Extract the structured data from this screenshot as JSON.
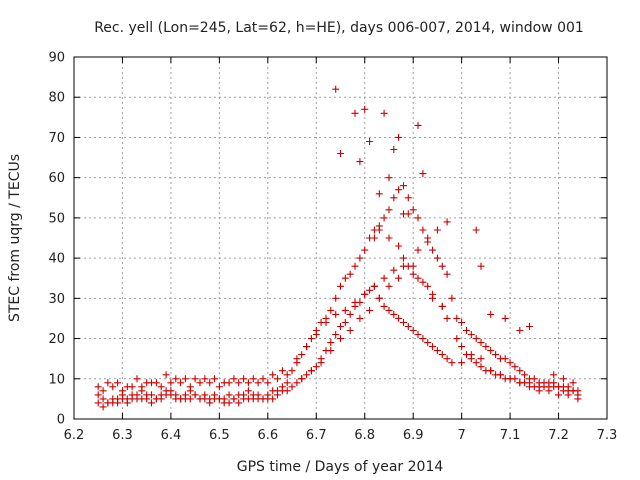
{
  "chart_data": {
    "type": "scatter",
    "title": "Rec. yell (Lon=245, Lat=62, h=HE), days 006-007, 2014, window 001",
    "xlabel": "GPS time / Days of year 2014",
    "ylabel": "STEC from uqrg / TECUs",
    "xlim": [
      6.2,
      7.3
    ],
    "ylim": [
      0,
      90
    ],
    "x_ticks": [
      "6.2",
      "6.3",
      "6.4",
      "6.5",
      "6.6",
      "6.7",
      "6.8",
      "6.9",
      "7",
      "7.1",
      "7.2",
      "7.3"
    ],
    "y_ticks": [
      "0",
      "10",
      "20",
      "30",
      "40",
      "50",
      "60",
      "70",
      "80",
      "90"
    ],
    "grid": true,
    "marker": "+",
    "color": "#cc0000",
    "series": [
      {
        "name": "STEC",
        "x": [
          6.25,
          6.26,
          6.27,
          6.28,
          6.29,
          6.3,
          6.31,
          6.32,
          6.33,
          6.34,
          6.35,
          6.36,
          6.37,
          6.38,
          6.39,
          6.4,
          6.41,
          6.42,
          6.43,
          6.44,
          6.45,
          6.46,
          6.47,
          6.48,
          6.49,
          6.5,
          6.51,
          6.52,
          6.53,
          6.54,
          6.55,
          6.56,
          6.57,
          6.58,
          6.59,
          6.6,
          6.61,
          6.62,
          6.63,
          6.64,
          6.25,
          6.26,
          6.27,
          6.28,
          6.29,
          6.3,
          6.31,
          6.32,
          6.33,
          6.34,
          6.35,
          6.36,
          6.37,
          6.38,
          6.39,
          6.4,
          6.41,
          6.42,
          6.43,
          6.44,
          6.45,
          6.46,
          6.47,
          6.48,
          6.49,
          6.5,
          6.51,
          6.52,
          6.53,
          6.54,
          6.55,
          6.56,
          6.57,
          6.58,
          6.59,
          6.6,
          6.61,
          6.62,
          6.63,
          6.64,
          6.25,
          6.27,
          6.29,
          6.31,
          6.33,
          6.35,
          6.37,
          6.39,
          6.41,
          6.43,
          6.45,
          6.47,
          6.49,
          6.51,
          6.53,
          6.55,
          6.57,
          6.59,
          6.61,
          6.63,
          6.26,
          6.28,
          6.3,
          6.32,
          6.34,
          6.36,
          6.38,
          6.4,
          6.42,
          6.44,
          6.46,
          6.48,
          6.5,
          6.52,
          6.54,
          6.56,
          6.58,
          6.6,
          6.62,
          6.64,
          6.65,
          6.66,
          6.67,
          6.68,
          6.69,
          6.7,
          6.71,
          6.72,
          6.73,
          6.74,
          6.75,
          6.76,
          6.77,
          6.78,
          6.79,
          6.8,
          6.81,
          6.82,
          6.83,
          6.84,
          6.85,
          6.86,
          6.87,
          6.88,
          6.89,
          6.9,
          6.91,
          6.92,
          6.93,
          6.94,
          6.95,
          6.96,
          6.97,
          6.98,
          6.65,
          6.66,
          6.67,
          6.68,
          6.69,
          6.7,
          6.71,
          6.72,
          6.73,
          6.74,
          6.75,
          6.76,
          6.77,
          6.78,
          6.79,
          6.8,
          6.81,
          6.82,
          6.83,
          6.84,
          6.85,
          6.86,
          6.87,
          6.88,
          6.89,
          6.9,
          6.91,
          6.92,
          6.93,
          6.94,
          6.95,
          6.96,
          6.97,
          6.98,
          6.66,
          6.68,
          6.7,
          6.72,
          6.74,
          6.76,
          6.78,
          6.8,
          6.82,
          6.84,
          6.86,
          6.88,
          6.9,
          6.92,
          6.94,
          6.96,
          6.67,
          6.69,
          6.71,
          6.73,
          6.75,
          6.77,
          6.79,
          6.81,
          6.83,
          6.85,
          6.87,
          6.89,
          6.91,
          6.93,
          6.95,
          6.97,
          6.74,
          6.75,
          6.78,
          6.79,
          6.8,
          6.81,
          6.83,
          6.84,
          6.85,
          6.86,
          6.87,
          6.88,
          6.89,
          6.91,
          6.92,
          6.82,
          6.83,
          6.85,
          6.87,
          6.88,
          6.9,
          6.91,
          6.93,
          6.94,
          6.96,
          6.97,
          6.99,
          7.0,
          7.01,
          7.02,
          7.03,
          7.04,
          7.05,
          7.06,
          7.07,
          7.08,
          7.09,
          7.1,
          7.11,
          7.12,
          7.13,
          7.14,
          7.15,
          7.16,
          7.17,
          7.18,
          7.19,
          7.2,
          7.21,
          7.22,
          7.23,
          7.24,
          6.99,
          7.0,
          7.01,
          7.02,
          7.03,
          7.04,
          7.05,
          7.06,
          7.07,
          7.08,
          7.09,
          7.1,
          7.11,
          7.12,
          7.13,
          7.14,
          7.15,
          7.16,
          7.17,
          7.18,
          7.19,
          7.2,
          7.21,
          7.22,
          7.23,
          7.24,
          7.0,
          7.02,
          7.04,
          7.06,
          7.08,
          7.1,
          7.12,
          7.14,
          7.16,
          7.18,
          7.2,
          7.22,
          7.24,
          7.03,
          7.04,
          7.06,
          7.09,
          7.12,
          7.14,
          7.19,
          7.21,
          7.23
        ],
        "y": [
          6,
          5,
          4,
          5,
          5,
          6,
          5,
          6,
          6,
          7,
          6,
          6,
          5,
          6,
          7,
          7,
          6,
          5,
          6,
          7,
          6,
          5,
          6,
          5,
          6,
          5,
          5,
          6,
          5,
          6,
          6,
          7,
          6,
          6,
          5,
          6,
          7,
          7,
          8,
          9,
          4,
          3,
          4,
          4,
          4,
          5,
          4,
          5,
          5,
          5,
          5,
          4,
          5,
          5,
          6,
          6,
          5,
          5,
          5,
          5,
          6,
          5,
          5,
          4,
          5,
          5,
          4,
          4,
          5,
          4,
          5,
          5,
          5,
          5,
          5,
          5,
          5,
          6,
          7,
          7,
          8,
          9,
          9,
          8,
          10,
          9,
          9,
          11,
          10,
          10,
          10,
          10,
          10,
          9,
          10,
          10,
          10,
          10,
          11,
          12,
          7,
          8,
          7,
          8,
          8,
          9,
          8,
          9,
          9,
          8,
          9,
          9,
          8,
          9,
          9,
          9,
          9,
          9,
          10,
          11,
          12,
          14,
          16,
          18,
          20,
          22,
          24,
          25,
          27,
          30,
          33,
          35,
          36,
          38,
          40,
          42,
          45,
          47,
          48,
          50,
          52,
          55,
          57,
          58,
          55,
          52,
          50,
          47,
          45,
          42,
          40,
          38,
          36,
          30,
          8,
          9,
          10,
          11,
          12,
          13,
          15,
          17,
          19,
          21,
          23,
          24,
          26,
          28,
          29,
          31,
          32,
          33,
          30,
          28,
          27,
          26,
          25,
          24,
          23,
          22,
          21,
          20,
          19,
          18,
          17,
          16,
          15,
          14,
          15,
          18,
          21,
          24,
          26,
          27,
          29,
          31,
          33,
          35,
          37,
          38,
          36,
          34,
          31,
          28,
          10,
          12,
          14,
          17,
          20,
          22,
          25,
          27,
          30,
          33,
          35,
          38,
          42,
          44,
          47,
          49,
          82,
          66,
          76,
          64,
          77,
          69,
          56,
          76,
          60,
          67,
          70,
          51,
          51,
          73,
          61,
          45,
          47,
          45,
          43,
          40,
          38,
          35,
          33,
          30,
          28,
          25,
          20,
          18,
          16,
          15,
          14,
          13,
          12,
          12,
          11,
          11,
          10,
          10,
          10,
          9,
          9,
          9,
          8,
          8,
          8,
          8,
          8,
          8,
          7,
          7,
          7,
          7,
          25,
          24,
          22,
          21,
          20,
          19,
          18,
          17,
          16,
          15,
          15,
          14,
          13,
          12,
          11,
          10,
          10,
          9,
          9,
          9,
          9,
          8,
          8,
          8,
          7,
          6,
          14,
          16,
          15,
          12,
          11,
          10,
          9,
          8,
          7,
          7,
          6,
          6,
          5,
          47,
          38,
          26,
          25,
          22,
          23,
          11,
          10,
          9
        ]
      }
    ]
  }
}
